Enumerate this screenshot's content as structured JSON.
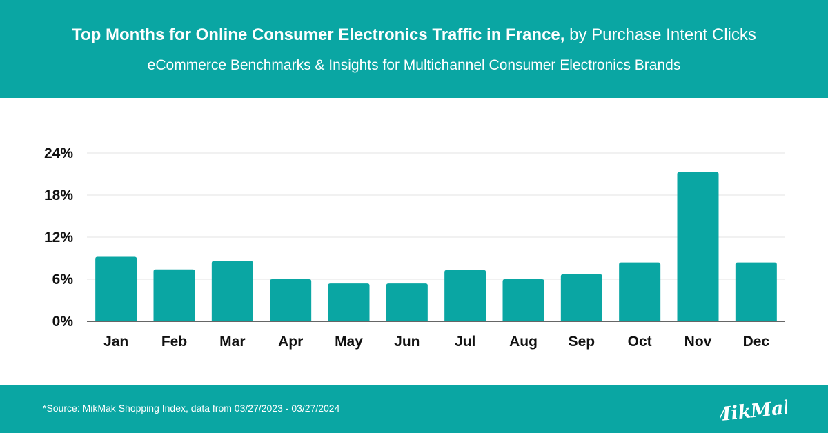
{
  "header": {
    "title_bold": "Top Months for Online Consumer Electronics Traffic in France,",
    "title_rest": " by Purchase Intent Clicks",
    "subtitle": "eCommerce Benchmarks & Insights for Multichannel Consumer Electronics Brands"
  },
  "footer": {
    "source": "*Source: MikMak Shopping Index, data from  03/27/2023 - 03/27/2024",
    "logo_text": "MikMak"
  },
  "colors": {
    "brand": "#0aa6a3",
    "bar": "#0aa6a3",
    "grid": "#e3e3e3",
    "axis": "#333333",
    "text": "#111111"
  },
  "chart_data": {
    "type": "bar",
    "title": "",
    "xlabel": "",
    "ylabel": "",
    "categories": [
      "Jan",
      "Feb",
      "Mar",
      "Apr",
      "May",
      "Jun",
      "Jul",
      "Aug",
      "Sep",
      "Oct",
      "Nov",
      "Dec"
    ],
    "values": [
      9.2,
      7.4,
      8.6,
      6.0,
      5.4,
      5.4,
      7.3,
      6.0,
      6.7,
      8.4,
      21.3,
      8.4
    ],
    "ylim": [
      0,
      24
    ],
    "yticks": [
      0,
      6,
      12,
      18,
      24
    ],
    "ytick_labels": [
      "0%",
      "6%",
      "12%",
      "18%",
      "24%"
    ],
    "grid": true
  }
}
